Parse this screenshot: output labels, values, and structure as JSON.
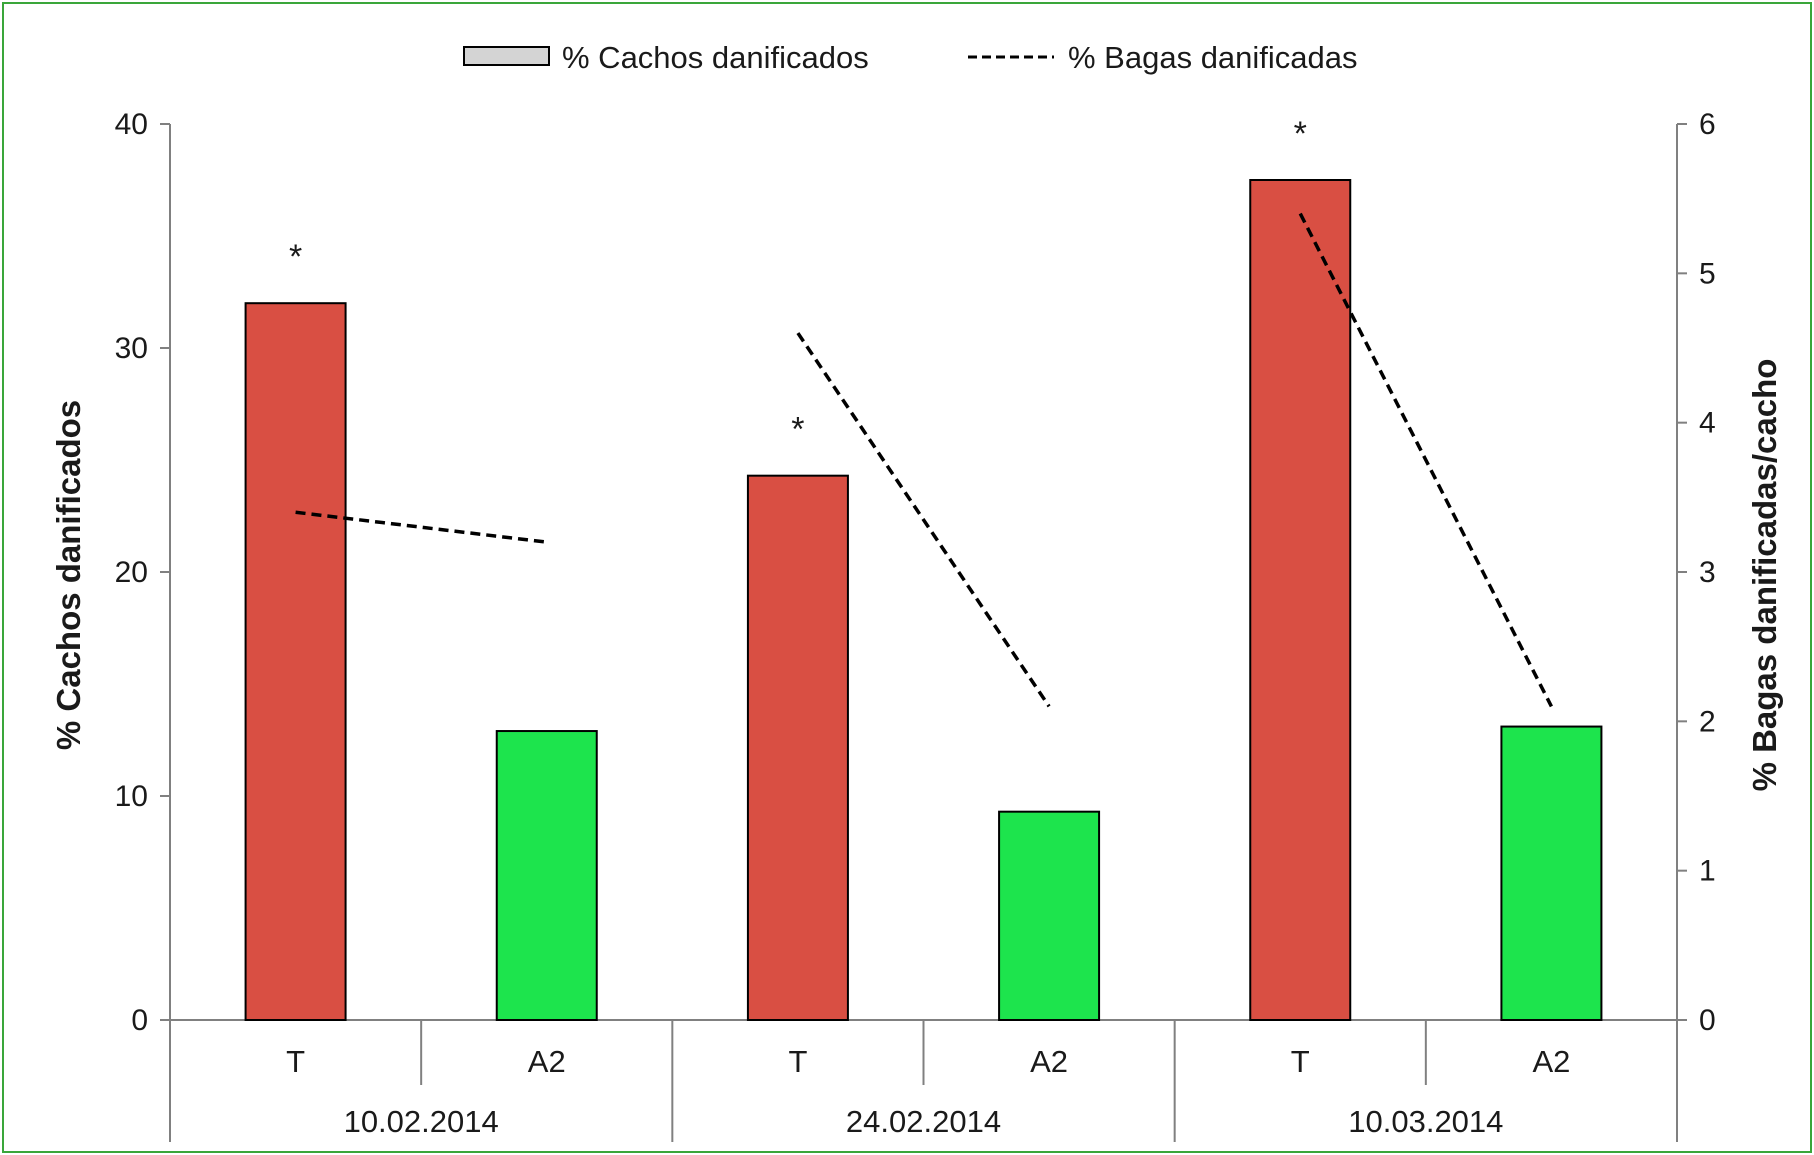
{
  "chart_data": {
    "type": "bar",
    "title": "",
    "groups": [
      "10.02.2014",
      "24.02.2014",
      "10.03.2014"
    ],
    "categories": [
      "T",
      "A2",
      "T",
      "A2",
      "T",
      "A2"
    ],
    "ylabel": "% Cachos danificados",
    "y2label": "% Bagas danificadas/cacho",
    "ylim": [
      0,
      40
    ],
    "y2lim": [
      0,
      6
    ],
    "yticks": [
      "0",
      "10",
      "20",
      "30",
      "40"
    ],
    "y2ticks": [
      "0",
      "1",
      "2",
      "3",
      "4",
      "5",
      "6"
    ],
    "legend_position": "top",
    "grid": false,
    "series": [
      {
        "name": "% Cachos danificados",
        "type": "bar",
        "axis": "left",
        "values": [
          32.0,
          12.9,
          24.3,
          9.3,
          37.5,
          13.1
        ],
        "colors": [
          "#d94f43",
          "#1de44d",
          "#d94f43",
          "#1de44d",
          "#d94f43",
          "#1de44d"
        ]
      },
      {
        "name": "% Bagas danificadas",
        "type": "line",
        "style": "dashed",
        "axis": "right",
        "segments": [
          [
            3.4,
            3.2
          ],
          [
            4.6,
            2.1
          ],
          [
            5.4,
            2.1
          ]
        ],
        "color": "#000000"
      }
    ],
    "annotations": [
      {
        "text": "*",
        "category_index": 0
      },
      {
        "text": "*",
        "category_index": 2
      },
      {
        "text": "*",
        "category_index": 4
      }
    ]
  }
}
